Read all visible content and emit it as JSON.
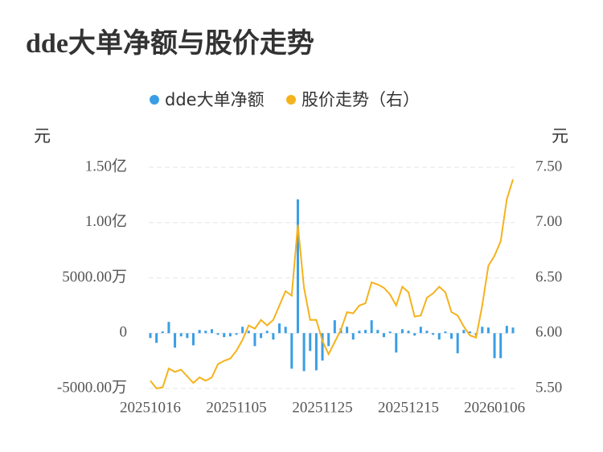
{
  "chart_data": {
    "type": "bar-line",
    "title": "dde大单净额与股价走势",
    "y_label": "元",
    "y2_label": "元",
    "categories": [
      "20251016",
      null,
      null,
      null,
      null,
      null,
      null,
      null,
      null,
      null,
      null,
      null,
      null,
      null,
      "20251105",
      null,
      null,
      null,
      null,
      null,
      null,
      null,
      null,
      null,
      null,
      null,
      null,
      null,
      "20251125",
      null,
      null,
      null,
      null,
      null,
      null,
      null,
      null,
      null,
      null,
      null,
      null,
      null,
      "20251215",
      null,
      null,
      null,
      null,
      null,
      null,
      null,
      null,
      null,
      null,
      null,
      null,
      null,
      "20260106",
      null,
      null,
      null
    ],
    "series": [
      {
        "name": "dde大单净额",
        "type": "bar",
        "color": "#3a9ee4",
        "values": [
          -4400000,
          -8800000,
          1500000,
          10200000,
          -13100000,
          -2900000,
          -4400000,
          -11000000,
          2900000,
          2200000,
          3600000,
          -1500000,
          -3600000,
          -2900000,
          -1500000,
          5800000,
          2200000,
          -11700000,
          -4400000,
          2200000,
          -5800000,
          8800000,
          5800000,
          -32100000,
          121000000,
          -34300000,
          -16100000,
          -33600000,
          -24800000,
          -11700000,
          11700000,
          4400000,
          5800000,
          -5800000,
          2200000,
          2900000,
          11700000,
          2900000,
          -3600000,
          1500000,
          -17500000,
          3600000,
          2200000,
          -2200000,
          5800000,
          2200000,
          -1500000,
          -5800000,
          1500000,
          -5100000,
          -18200000,
          2900000,
          1500000,
          -2200000,
          5800000,
          5100000,
          -22600000,
          -22600000,
          6600000,
          5100000
        ]
      },
      {
        "name": "股价走势（右）",
        "type": "line",
        "axis": "y2",
        "color": "#f5b21c",
        "values": [
          5.57,
          5.5,
          5.51,
          5.68,
          5.65,
          5.67,
          5.61,
          5.55,
          5.6,
          5.57,
          5.6,
          5.72,
          5.75,
          5.77,
          5.84,
          5.94,
          6.07,
          6.04,
          6.12,
          6.07,
          6.12,
          6.25,
          6.38,
          6.34,
          6.98,
          6.41,
          6.12,
          6.12,
          5.93,
          5.81,
          5.92,
          6.03,
          6.19,
          6.18,
          6.25,
          6.27,
          6.46,
          6.44,
          6.41,
          6.35,
          6.25,
          6.42,
          6.37,
          6.15,
          6.16,
          6.32,
          6.36,
          6.42,
          6.37,
          6.19,
          6.16,
          6.06,
          5.98,
          5.96,
          6.25,
          6.61,
          6.7,
          6.83,
          7.21,
          7.39
        ]
      }
    ],
    "ylim": [
      -50000000,
      150000000
    ],
    "yticks": [
      {
        "value": -50000000,
        "label": "-5000.00万"
      },
      0,
      {
        "value": 50000000,
        "label": "5000.00万"
      },
      {
        "value": 100000000,
        "label": "1.00亿"
      },
      {
        "value": 150000000,
        "label": "1.50亿"
      }
    ],
    "y2lim": [
      5.5,
      7.5
    ],
    "y2ticks": [
      {
        "value": 5.5,
        "label": "5.50"
      },
      {
        "value": 6,
        "label": "6.00"
      },
      {
        "value": 6.5,
        "label": "6.50"
      },
      {
        "value": 7,
        "label": "7.00"
      },
      {
        "value": 7.5,
        "label": "7.50"
      }
    ],
    "grid": true
  }
}
